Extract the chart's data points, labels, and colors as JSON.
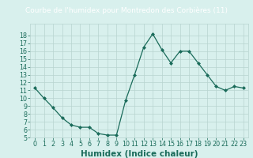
{
  "x": [
    0,
    1,
    2,
    3,
    4,
    5,
    6,
    7,
    8,
    9,
    10,
    11,
    12,
    13,
    14,
    15,
    16,
    17,
    18,
    19,
    20,
    21,
    22,
    23
  ],
  "y": [
    11.3,
    10.0,
    8.8,
    7.5,
    6.6,
    6.3,
    6.3,
    5.5,
    5.3,
    5.3,
    9.7,
    13.0,
    16.5,
    18.2,
    16.2,
    14.5,
    16.0,
    16.0,
    14.5,
    13.0,
    11.5,
    11.0,
    11.5,
    11.3
  ],
  "title": "Courbe de l'humidex pour Montredon des Corbières (11)",
  "xlabel": "Humidex (Indice chaleur)",
  "xlim": [
    -0.5,
    23.5
  ],
  "ylim": [
    5,
    19
  ],
  "yticks": [
    5,
    6,
    7,
    8,
    9,
    10,
    11,
    12,
    13,
    14,
    15,
    16,
    17,
    18
  ],
  "xticks": [
    0,
    1,
    2,
    3,
    4,
    5,
    6,
    7,
    8,
    9,
    10,
    11,
    12,
    13,
    14,
    15,
    16,
    17,
    18,
    19,
    20,
    21,
    22,
    23
  ],
  "line_color": "#1a6b5a",
  "marker": "D",
  "marker_size": 2.0,
  "bg_color": "#d8f0ed",
  "grid_color": "#b8d4d0",
  "title_bg": "#2d7a6b",
  "title_fg": "#ffffff",
  "title_fontsize": 6.5,
  "label_fontsize": 7.5,
  "tick_fontsize": 5.8
}
